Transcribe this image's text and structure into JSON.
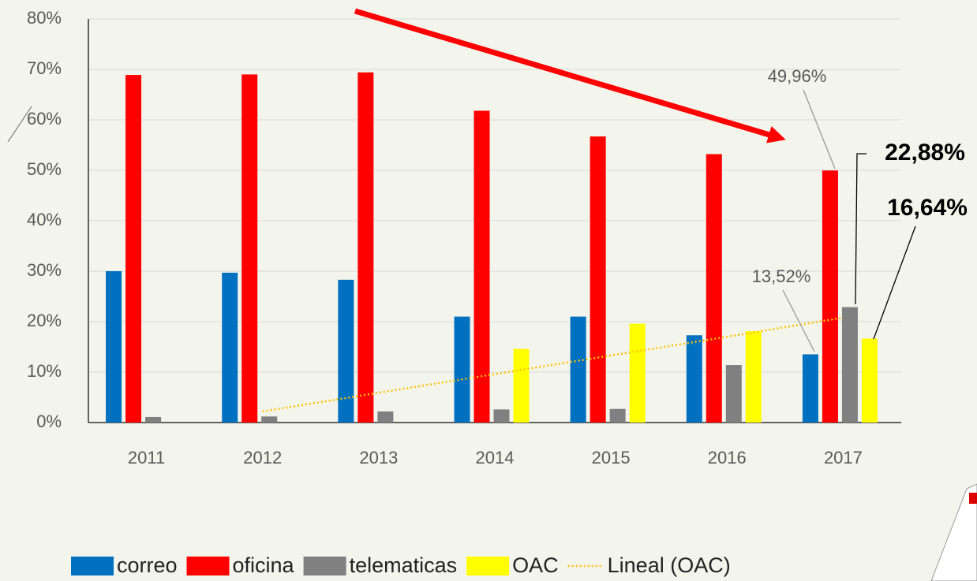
{
  "chart_data": {
    "type": "bar",
    "categories": [
      "2011",
      "2012",
      "2013",
      "2014",
      "2015",
      "2016",
      "2017"
    ],
    "series": [
      {
        "name": "correo",
        "color": "#0070c0",
        "values": [
          30,
          29.7,
          28.3,
          21,
          21,
          17.3,
          13.52
        ],
        "value_labels": [
          null,
          null,
          null,
          null,
          null,
          null,
          "13,52%"
        ]
      },
      {
        "name": "oficina",
        "color": "#ff0000",
        "values": [
          68.9,
          69,
          69.4,
          61.8,
          56.7,
          53.2,
          49.96
        ],
        "value_labels": [
          null,
          null,
          null,
          null,
          null,
          null,
          "49,96%"
        ]
      },
      {
        "name": "telematicas",
        "color": "#808080",
        "values": [
          1.1,
          1.2,
          2.2,
          2.6,
          2.7,
          11.4,
          22.88
        ],
        "value_labels": [
          null,
          null,
          null,
          null,
          null,
          null,
          "22,88%"
        ]
      },
      {
        "name": "OAC",
        "color": "#ffff00",
        "values": [
          null,
          null,
          null,
          14.6,
          19.6,
          18.1,
          16.64
        ],
        "value_labels": [
          null,
          null,
          null,
          null,
          null,
          null,
          "16,64%"
        ]
      },
      {
        "name": "Lineal (OAC)",
        "color": "#ffc000",
        "type": "line",
        "dashed": true,
        "values": [
          null,
          2.2,
          5.9,
          9.6,
          13.3,
          17.0,
          20.8
        ]
      }
    ],
    "ylim": [
      0,
      80
    ],
    "yticks": [
      {
        "value": 0,
        "label": "0%"
      },
      {
        "value": 10,
        "label": "10%"
      },
      {
        "value": 20,
        "label": "20%"
      },
      {
        "value": 30,
        "label": "30%"
      },
      {
        "value": 40,
        "label": "40%"
      },
      {
        "value": 50,
        "label": "50%"
      },
      {
        "value": 60,
        "label": "60%"
      },
      {
        "value": 70,
        "label": "70%"
      },
      {
        "value": 80,
        "label": "80%"
      }
    ],
    "grid": true,
    "legend": "bottom"
  }
}
